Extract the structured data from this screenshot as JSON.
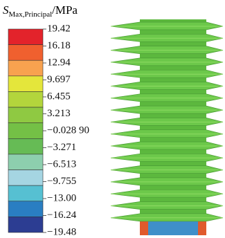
{
  "legend": {
    "title_symbol": "S",
    "title_subscript": "Max,Principal",
    "title_unit": "/MPa",
    "labels": [
      "19.42",
      "16.18",
      "12.94",
      "9.697",
      "6.455",
      "3.213",
      "−0.028 90",
      "−3.271",
      "−6.513",
      "−9.755",
      "−13.00",
      "−16.24",
      "−19.48"
    ],
    "colors": [
      "#e3232b",
      "#f0602f",
      "#f8a24f",
      "#e4e63b",
      "#b3d53c",
      "#8fc942",
      "#74c046",
      "#66bb55",
      "#8dcfae",
      "#a5d5e2",
      "#56c0d2",
      "#2a7ec2",
      "#2c3d92"
    ]
  }
}
